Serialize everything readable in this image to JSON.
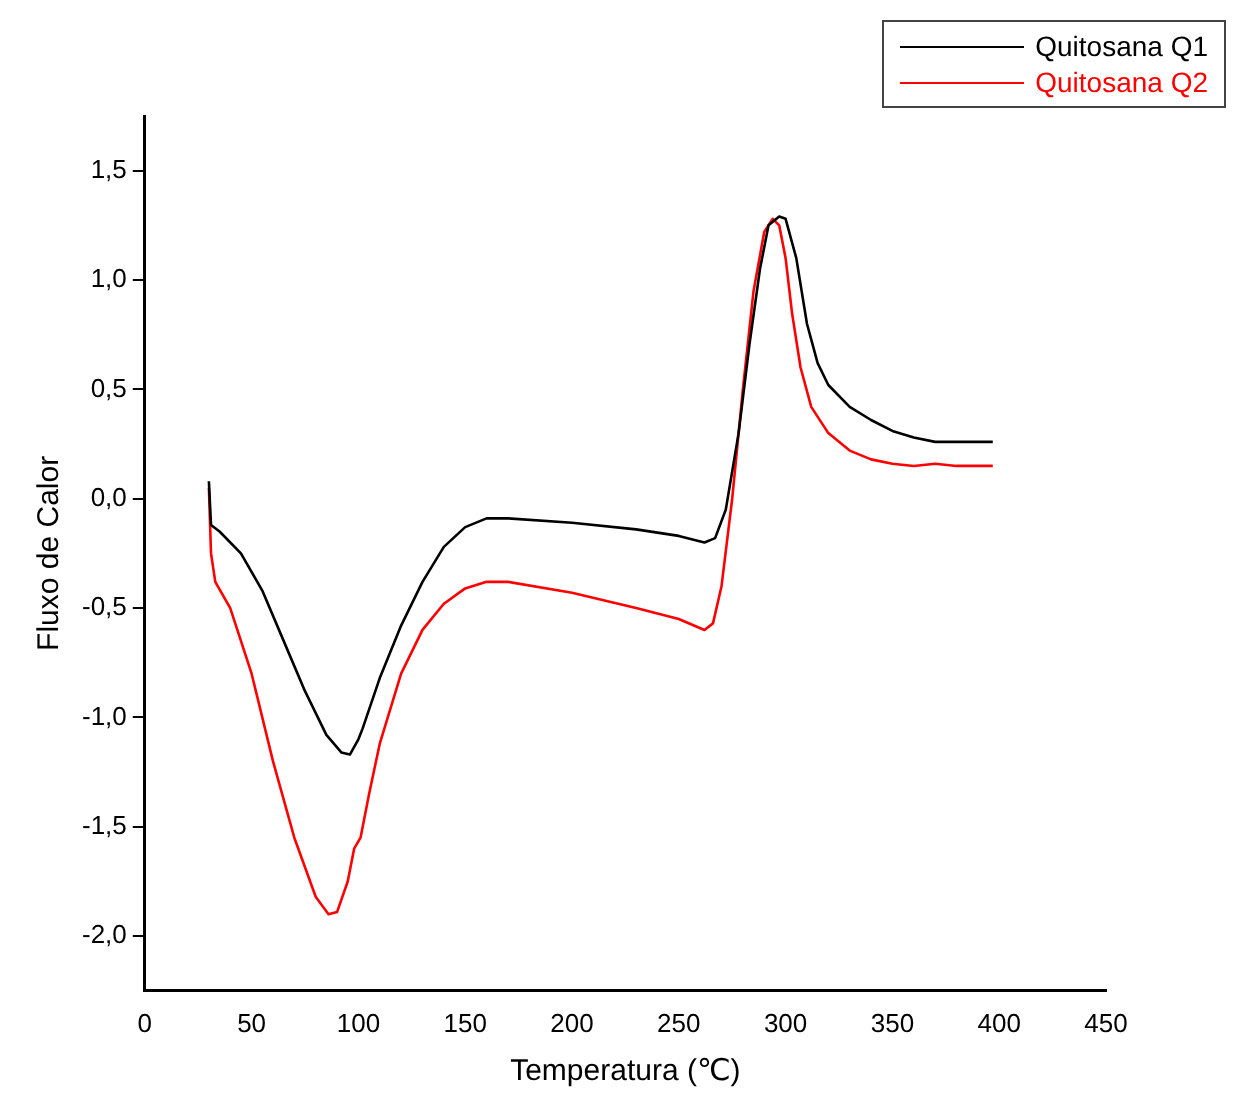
{
  "chart_data": {
    "type": "line",
    "xlabel": "Temperatura (℃)",
    "ylabel": "Fluxo de Calor",
    "xlim": [
      0,
      450
    ],
    "xticks": [
      0,
      50,
      100,
      150,
      200,
      250,
      300,
      350,
      400,
      450
    ],
    "ylim": [
      -2.25,
      1.75
    ],
    "yticks": [
      {
        "value": -2,
        "label": "-2,0"
      },
      {
        "value": -1.5,
        "label": "-1,5"
      },
      {
        "value": -1,
        "label": "-1,0"
      },
      {
        "value": -0.5,
        "label": "-0,5"
      },
      {
        "value": 0,
        "label": "0,0"
      },
      {
        "value": 0.5,
        "label": "0,5"
      },
      {
        "value": 1,
        "label": "1,0"
      },
      {
        "value": 1.5,
        "label": "1,5"
      }
    ],
    "grid": false,
    "legend": "top right",
    "marker": "none",
    "line_style": "solid",
    "series": [
      {
        "name": "Quitosana Q1",
        "color": "#000000",
        "x": [
          30,
          31,
          35,
          45,
          55,
          65,
          75,
          85,
          92,
          96,
          100,
          102,
          110,
          120,
          130,
          140,
          150,
          160,
          170,
          200,
          230,
          250,
          262,
          267,
          272,
          278,
          283,
          288,
          292,
          297,
          300,
          305,
          310,
          315,
          320,
          330,
          340,
          350,
          360,
          370,
          380,
          397
        ],
        "values": [
          0.08,
          -0.12,
          -0.15,
          -0.25,
          -0.42,
          -0.65,
          -0.88,
          -1.08,
          -1.16,
          -1.17,
          -1.1,
          -1.05,
          -0.82,
          -0.58,
          -0.38,
          -0.22,
          -0.13,
          -0.09,
          -0.09,
          -0.11,
          -0.14,
          -0.17,
          -0.2,
          -0.18,
          -0.05,
          0.3,
          0.7,
          1.05,
          1.25,
          1.29,
          1.28,
          1.1,
          0.8,
          0.62,
          0.52,
          0.42,
          0.36,
          0.31,
          0.28,
          0.26,
          0.26,
          0.26
        ]
      },
      {
        "name": "Quitosana Q2",
        "color": "#ff0000",
        "x": [
          30,
          31,
          33,
          40,
          50,
          60,
          70,
          80,
          86,
          90,
          95,
          98,
          101,
          105,
          110,
          120,
          130,
          140,
          150,
          160,
          170,
          200,
          230,
          250,
          262,
          266,
          270,
          275,
          280,
          285,
          290,
          294,
          297,
          300,
          303,
          307,
          312,
          320,
          330,
          340,
          350,
          360,
          370,
          380,
          397
        ],
        "values": [
          0.05,
          -0.25,
          -0.38,
          -0.5,
          -0.8,
          -1.2,
          -1.55,
          -1.82,
          -1.9,
          -1.89,
          -1.75,
          -1.6,
          -1.55,
          -1.35,
          -1.12,
          -0.8,
          -0.6,
          -0.48,
          -0.41,
          -0.38,
          -0.38,
          -0.43,
          -0.5,
          -0.55,
          -0.6,
          -0.57,
          -0.4,
          0.0,
          0.5,
          0.95,
          1.22,
          1.28,
          1.25,
          1.1,
          0.85,
          0.6,
          0.42,
          0.3,
          0.22,
          0.18,
          0.16,
          0.15,
          0.16,
          0.15,
          0.15
        ]
      }
    ]
  }
}
